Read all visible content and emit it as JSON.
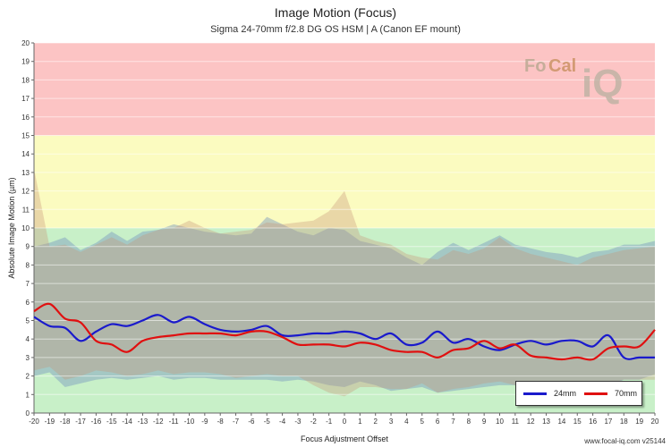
{
  "chart_data": {
    "type": "line",
    "title": "Image Motion (Focus)",
    "subtitle": "Sigma 24-70mm f/2.8 DG OS HSM | A (Canon EF mount)",
    "xlabel": "Focus Adjustment Offset",
    "ylabel": "Absolute Image Motion (µm)",
    "xlim": [
      -20,
      20
    ],
    "ylim": [
      0,
      20
    ],
    "x_ticks": [
      -20,
      -19,
      -18,
      -17,
      -16,
      -15,
      -14,
      -13,
      -12,
      -11,
      -10,
      -9,
      -8,
      -7,
      -6,
      -5,
      -4,
      -3,
      -2,
      -1,
      0,
      1,
      2,
      3,
      4,
      5,
      6,
      7,
      8,
      9,
      10,
      11,
      12,
      13,
      14,
      15,
      16,
      17,
      18,
      19,
      20
    ],
    "y_ticks": [
      0,
      1,
      2,
      3,
      4,
      5,
      6,
      7,
      8,
      9,
      10,
      11,
      12,
      13,
      14,
      15,
      16,
      17,
      18,
      19,
      20
    ],
    "zones": [
      {
        "from": 0,
        "to": 10,
        "color": "#c8f0c8"
      },
      {
        "from": 10,
        "to": 15,
        "color": "#fbfbc0"
      },
      {
        "from": 15,
        "to": 20,
        "color": "#fcc4c4"
      }
    ],
    "legend_position": "bottom-right",
    "series": [
      {
        "name": "24mm",
        "color": "#1a1acc",
        "x": [
          -20,
          -19,
          -18,
          -17,
          -16,
          -15,
          -14,
          -13,
          -12,
          -11,
          -10,
          -9,
          -8,
          -7,
          -6,
          -5,
          -4,
          -3,
          -2,
          -1,
          0,
          1,
          2,
          3,
          4,
          5,
          6,
          7,
          8,
          9,
          10,
          11,
          12,
          13,
          14,
          15,
          16,
          17,
          18,
          19,
          20
        ],
        "y": [
          5.2,
          4.7,
          4.6,
          3.9,
          4.4,
          4.8,
          4.7,
          5.0,
          5.3,
          4.9,
          5.2,
          4.8,
          4.5,
          4.4,
          4.5,
          4.7,
          4.2,
          4.2,
          4.3,
          4.3,
          4.4,
          4.3,
          4.0,
          4.3,
          3.7,
          3.8,
          4.4,
          3.8,
          4.0,
          3.6,
          3.4,
          3.7,
          3.9,
          3.7,
          3.9,
          3.9,
          3.6,
          4.2,
          3.0,
          3.0,
          3.0
        ],
        "band_upper": [
          9.0,
          9.2,
          9.5,
          8.8,
          9.2,
          9.8,
          9.3,
          9.8,
          9.9,
          10.2,
          10.0,
          9.8,
          9.7,
          9.6,
          9.7,
          10.6,
          10.2,
          9.8,
          9.6,
          10.0,
          9.9,
          9.3,
          9.1,
          8.9,
          8.4,
          8.0,
          8.7,
          9.2,
          8.8,
          9.2,
          9.6,
          9.1,
          8.9,
          8.7,
          8.6,
          8.4,
          8.7,
          8.8,
          9.1,
          9.1,
          9.3
        ],
        "band_lower": [
          2.0,
          2.2,
          1.4,
          1.6,
          1.8,
          1.9,
          1.8,
          1.9,
          2.0,
          1.8,
          1.9,
          1.9,
          1.8,
          1.8,
          1.8,
          1.8,
          1.7,
          1.8,
          1.7,
          1.5,
          1.4,
          1.7,
          1.5,
          1.2,
          1.3,
          1.4,
          1.1,
          1.2,
          1.3,
          1.4,
          1.5,
          1.5,
          1.4,
          1.4,
          1.6,
          1.6,
          1.5,
          1.4,
          1.8,
          1.8,
          2.1
        ]
      },
      {
        "name": "70mm",
        "color": "#e01010",
        "x": [
          -20,
          -19,
          -18,
          -17,
          -16,
          -15,
          -14,
          -13,
          -12,
          -11,
          -10,
          -9,
          -8,
          -7,
          -6,
          -5,
          -4,
          -3,
          -2,
          -1,
          0,
          1,
          2,
          3,
          4,
          5,
          6,
          7,
          8,
          9,
          10,
          11,
          12,
          13,
          14,
          15,
          16,
          17,
          18,
          19,
          20
        ],
        "y": [
          5.5,
          5.9,
          5.1,
          4.9,
          3.9,
          3.7,
          3.3,
          3.9,
          4.1,
          4.2,
          4.3,
          4.3,
          4.3,
          4.2,
          4.4,
          4.4,
          4.1,
          3.7,
          3.7,
          3.7,
          3.6,
          3.8,
          3.7,
          3.4,
          3.3,
          3.3,
          3.0,
          3.4,
          3.5,
          3.9,
          3.5,
          3.7,
          3.1,
          3.0,
          2.9,
          3.0,
          2.9,
          3.5,
          3.6,
          3.6,
          4.5
        ],
        "band_upper": [
          13.2,
          9.0,
          9.1,
          8.7,
          9.1,
          9.5,
          9.1,
          9.6,
          9.9,
          10.0,
          10.4,
          10.0,
          9.7,
          9.8,
          9.9,
          10.3,
          10.2,
          10.3,
          10.4,
          10.9,
          12.0,
          9.6,
          9.3,
          9.1,
          8.6,
          8.4,
          8.3,
          8.8,
          8.6,
          8.9,
          9.5,
          8.9,
          8.6,
          8.4,
          8.2,
          8.0,
          8.4,
          8.6,
          8.8,
          8.9,
          9.0
        ],
        "band_lower": [
          2.3,
          2.5,
          1.8,
          2.0,
          2.3,
          2.2,
          2.0,
          2.1,
          2.3,
          2.1,
          2.2,
          2.2,
          2.1,
          1.9,
          2.0,
          2.1,
          2.0,
          2.0,
          1.5,
          1.1,
          0.9,
          1.4,
          1.4,
          1.3,
          1.3,
          1.6,
          1.1,
          1.3,
          1.4,
          1.6,
          1.7,
          1.5,
          1.6,
          1.6,
          1.5,
          1.5,
          1.7,
          1.6,
          1.8,
          1.8,
          1.8
        ]
      }
    ]
  },
  "watermark": {
    "part1": "Fo",
    "part2": "Cal",
    "part3": "iQ"
  },
  "footer": "www.focal-iq.com  v25144"
}
